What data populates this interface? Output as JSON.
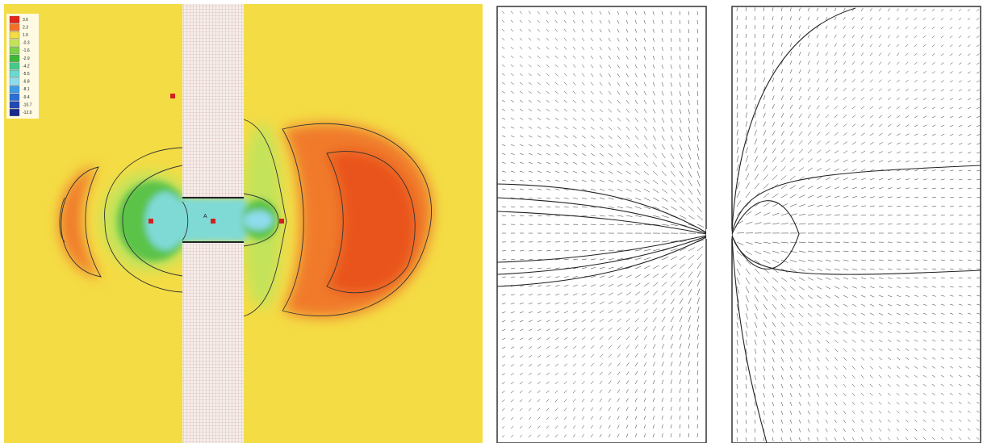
{
  "legend": {
    "entries": [
      {
        "label": "3.6",
        "color": "#e3261b"
      },
      {
        "label": "2.3",
        "color": "#f2702a"
      },
      {
        "label": "1.0",
        "color": "#f4dc45"
      },
      {
        "label": "-0.3",
        "color": "#c4e35a"
      },
      {
        "label": "-1.6",
        "color": "#7fd14c"
      },
      {
        "label": "-2.9",
        "color": "#3fb83a"
      },
      {
        "label": "-4.2",
        "color": "#44c98a"
      },
      {
        "label": "-5.5",
        "color": "#6ad9d2"
      },
      {
        "label": "-6.8",
        "color": "#8edcec"
      },
      {
        "label": "-8.1",
        "color": "#3d9ee6"
      },
      {
        "label": "-9.4",
        "color": "#2a6fd6"
      },
      {
        "label": "-10.7",
        "color": "#2347b4"
      },
      {
        "label": "-12.0",
        "color": "#1a2a8c"
      }
    ]
  },
  "point_label": "A"
}
